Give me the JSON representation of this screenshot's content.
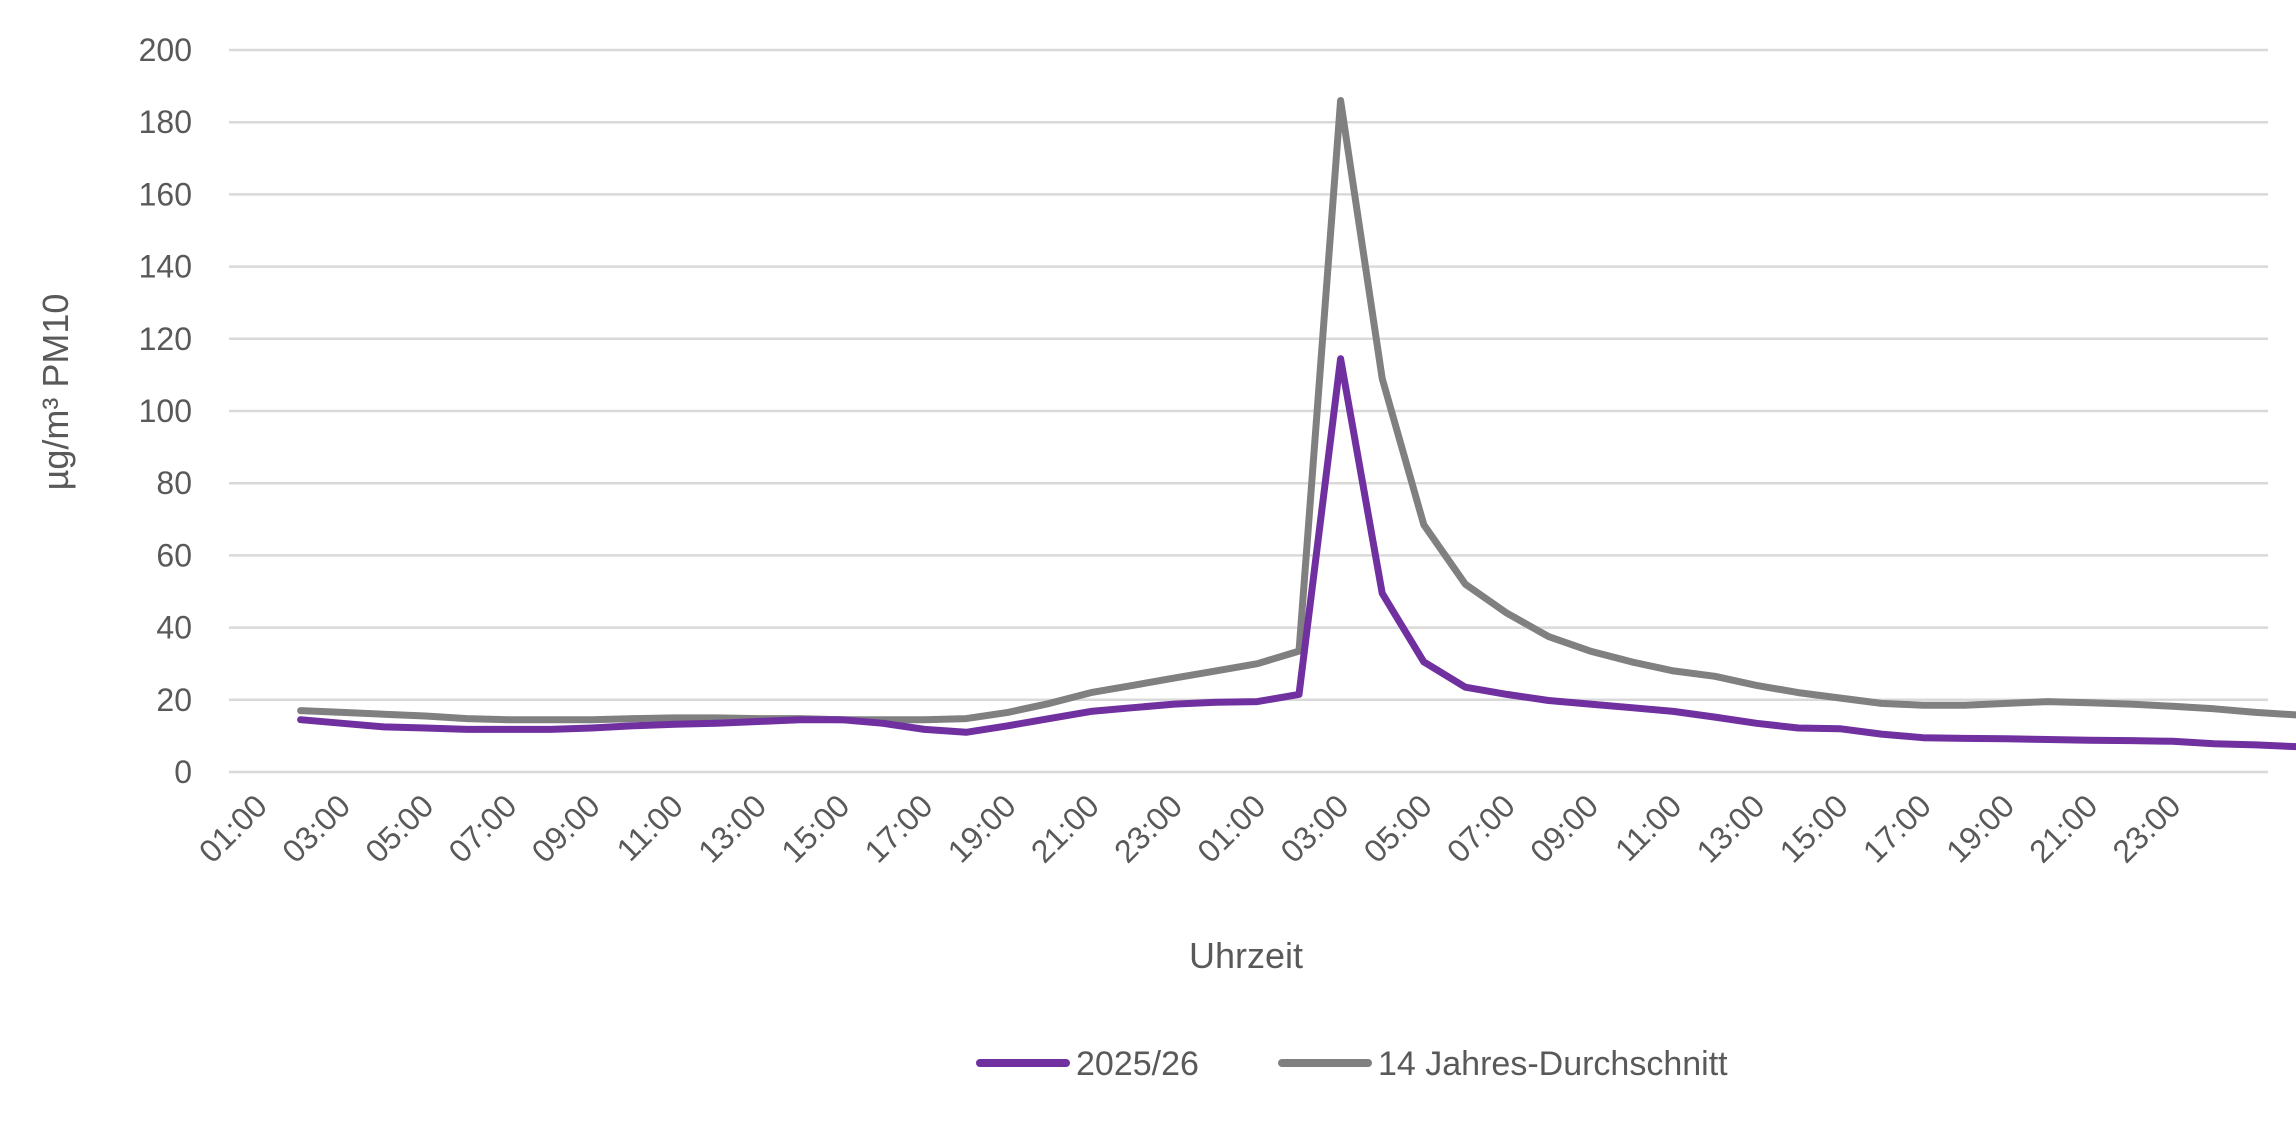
{
  "chart_data": {
    "type": "line",
    "title": "",
    "xlabel": "Uhrzeit",
    "ylabel": "µg/m³  PM10",
    "ylim": [
      0,
      200
    ],
    "yticks": [
      "0",
      "20",
      "40",
      "60",
      "80",
      "100",
      "120",
      "140",
      "160",
      "180",
      "200"
    ],
    "x_tick_labels": [
      "01:00",
      "03:00",
      "05:00",
      "07:00",
      "09:00",
      "11:00",
      "13:00",
      "15:00",
      "17:00",
      "19:00",
      "21:00",
      "23:00",
      "01:00",
      "03:00",
      "05:00",
      "07:00",
      "09:00",
      "11:00",
      "13:00",
      "15:00",
      "17:00",
      "19:00",
      "21:00",
      "23:00"
    ],
    "grid": true,
    "legend_position": "bottom",
    "series": [
      {
        "name": "2025/26",
        "color": "#7030A0",
        "values": [
          14.5,
          13.5,
          12.5,
          12.2,
          11.8,
          11.8,
          11.8,
          12.2,
          12.8,
          13.2,
          13.5,
          14.0,
          14.5,
          14.5,
          13.5,
          11.8,
          11.0,
          12.8,
          14.8,
          16.8,
          17.8,
          18.8,
          19.3,
          19.5,
          21.5,
          114.5,
          49.5,
          30.5,
          23.5,
          21.5,
          19.8,
          18.8,
          17.8,
          16.8,
          15.2,
          13.5,
          12.2,
          12.0,
          10.5,
          9.5,
          9.3,
          9.2,
          9.0,
          8.8,
          8.7,
          8.5,
          7.8,
          7.5,
          7.0
        ]
      },
      {
        "name": "14 Jahres-Durchschnitt",
        "color": "#808080",
        "values": [
          17.0,
          16.5,
          16.0,
          15.5,
          14.8,
          14.5,
          14.5,
          14.5,
          14.8,
          15.0,
          15.0,
          14.8,
          14.8,
          14.5,
          14.5,
          14.5,
          14.8,
          16.5,
          19.0,
          22.0,
          24.0,
          26.0,
          28.0,
          30.0,
          33.5,
          186.0,
          109.0,
          68.5,
          52.0,
          44.0,
          37.5,
          33.5,
          30.5,
          28.0,
          26.5,
          24.0,
          22.0,
          20.5,
          19.0,
          18.5,
          18.5,
          19.0,
          19.5,
          19.2,
          18.8,
          18.2,
          17.5,
          16.5,
          15.8
        ]
      }
    ]
  }
}
